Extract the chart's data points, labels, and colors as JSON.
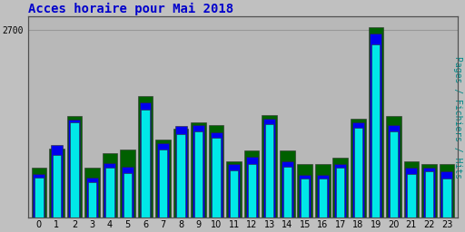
{
  "title": "Acces horaire pour Mai 2018",
  "title_color": "#0000cc",
  "title_fontsize": 10,
  "ylabel_right": "Pages / Fichiers / Hits",
  "ylabel_right_color": "#008888",
  "ylabel_right_fontsize": 7,
  "ytick_label": "2700",
  "ytick_value": 2700,
  "background_color": "#c0c0c0",
  "plot_bg_color": "#b8b8b8",
  "hours": [
    0,
    1,
    2,
    3,
    4,
    5,
    6,
    7,
    8,
    9,
    10,
    11,
    12,
    13,
    14,
    15,
    16,
    17,
    18,
    19,
    20,
    21,
    22,
    23
  ],
  "hits": [
    580,
    900,
    1380,
    520,
    720,
    640,
    1560,
    980,
    1200,
    1250,
    1150,
    680,
    780,
    1350,
    730,
    570,
    570,
    720,
    1300,
    2500,
    1250,
    630,
    670,
    570
  ],
  "fichiers": [
    630,
    1050,
    1420,
    580,
    790,
    740,
    1660,
    1080,
    1320,
    1330,
    1230,
    770,
    880,
    1430,
    820,
    620,
    620,
    770,
    1380,
    2650,
    1330,
    720,
    720,
    670
  ],
  "pages": [
    720,
    1000,
    1470,
    720,
    930,
    980,
    1750,
    1130,
    1280,
    1380,
    1330,
    820,
    970,
    1480,
    970,
    770,
    770,
    870,
    1430,
    2750,
    1470,
    820,
    770,
    770
  ],
  "bar_width": 0.85,
  "colors": {
    "pages": "#006000",
    "fichiers": "#0000ee",
    "hits": "#00e8e8"
  },
  "edge_color": "#303030",
  "grid_color": "#989898",
  "ylim": [
    0,
    2900
  ],
  "yticks": [
    2700
  ]
}
